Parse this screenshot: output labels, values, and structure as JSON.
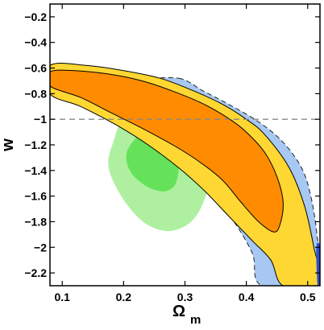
{
  "chart_data": {
    "type": "contour",
    "title": "",
    "xlabel": "Ω",
    "xlabel_sub": "m",
    "ylabel": "w",
    "xlim": [
      0.08,
      0.52
    ],
    "ylim": [
      -2.3,
      -0.1
    ],
    "xticks": [
      0.1,
      0.2,
      0.3,
      0.4,
      0.5
    ],
    "xtick_labels": [
      "0.1",
      "0.2",
      "0.3",
      "0.4",
      "0.5"
    ],
    "yticks": [
      -0.2,
      -0.4,
      -0.6,
      -0.8,
      -1.0,
      -1.2,
      -1.4,
      -1.6,
      -1.8,
      -2.0,
      -2.2
    ],
    "ytick_labels": [
      "−0.2",
      "−0.4",
      "−0.6",
      "−0.8",
      "−1",
      "−1.2",
      "−1.4",
      "−1.6",
      "−1.8",
      "−2",
      "−2.2"
    ],
    "grid": false,
    "legend": "none",
    "reference_line": {
      "y": -1.0,
      "style": "dashed",
      "color": "#888888"
    },
    "regions": [
      {
        "layer": "green-outer",
        "fill": "#aef0a0",
        "stroke": "none",
        "dashed": false,
        "points": [
          [
            0.255,
            -0.7
          ],
          [
            0.28,
            -0.68
          ],
          [
            0.3,
            -0.73
          ],
          [
            0.32,
            -0.85
          ],
          [
            0.33,
            -1.0
          ],
          [
            0.335,
            -1.2
          ],
          [
            0.34,
            -1.45
          ],
          [
            0.33,
            -1.65
          ],
          [
            0.31,
            -1.8
          ],
          [
            0.28,
            -1.87
          ],
          [
            0.25,
            -1.85
          ],
          [
            0.22,
            -1.75
          ],
          [
            0.19,
            -1.55
          ],
          [
            0.175,
            -1.35
          ],
          [
            0.185,
            -1.15
          ],
          [
            0.2,
            -0.95
          ],
          [
            0.22,
            -0.78
          ]
        ]
      },
      {
        "layer": "green-inner",
        "fill": "#66e25a",
        "stroke": "none",
        "dashed": false,
        "points": [
          [
            0.225,
            -1.12
          ],
          [
            0.245,
            -1.06
          ],
          [
            0.265,
            -1.1
          ],
          [
            0.285,
            -1.2
          ],
          [
            0.29,
            -1.35
          ],
          [
            0.285,
            -1.5
          ],
          [
            0.27,
            -1.56
          ],
          [
            0.25,
            -1.55
          ],
          [
            0.23,
            -1.5
          ],
          [
            0.21,
            -1.4
          ],
          [
            0.205,
            -1.26
          ]
        ]
      },
      {
        "layer": "blue-outer",
        "fill": "#a6c8f2",
        "stroke": "#222222",
        "dashed": true,
        "points": [
          [
            0.29,
            -0.68
          ],
          [
            0.33,
            -0.78
          ],
          [
            0.37,
            -0.88
          ],
          [
            0.42,
            -1.02
          ],
          [
            0.46,
            -1.18
          ],
          [
            0.49,
            -1.38
          ],
          [
            0.505,
            -1.6
          ],
          [
            0.515,
            -1.9
          ],
          [
            0.52,
            -2.3
          ],
          [
            0.425,
            -2.3
          ],
          [
            0.41,
            -2.05
          ],
          [
            0.38,
            -1.8
          ],
          [
            0.34,
            -1.55
          ],
          [
            0.3,
            -1.3
          ],
          [
            0.26,
            -1.12
          ],
          [
            0.22,
            -0.95
          ],
          [
            0.2,
            -0.8
          ],
          [
            0.23,
            -0.7
          ]
        ]
      },
      {
        "layer": "blue-inner",
        "fill": "#a6c8f2",
        "stroke": "#222222",
        "dashed": true,
        "points": [
          [
            0.25,
            -0.84
          ],
          [
            0.32,
            -0.93
          ],
          [
            0.39,
            -1.1
          ],
          [
            0.44,
            -1.3
          ],
          [
            0.47,
            -1.52
          ],
          [
            0.485,
            -1.8
          ],
          [
            0.47,
            -1.97
          ],
          [
            0.43,
            -1.9
          ],
          [
            0.39,
            -1.7
          ],
          [
            0.35,
            -1.47
          ],
          [
            0.31,
            -1.27
          ],
          [
            0.25,
            -1.1
          ],
          [
            0.22,
            -0.98
          ]
        ]
      },
      {
        "layer": "yellow-outer",
        "fill": "#ffd733",
        "stroke": "#000000",
        "dashed": false,
        "points": [
          [
            0.08,
            -0.58
          ],
          [
            0.14,
            -0.58
          ],
          [
            0.2,
            -0.62
          ],
          [
            0.26,
            -0.68
          ],
          [
            0.31,
            -0.77
          ],
          [
            0.36,
            -0.88
          ],
          [
            0.4,
            -1.0
          ],
          [
            0.43,
            -1.12
          ],
          [
            0.47,
            -1.38
          ],
          [
            0.495,
            -1.68
          ],
          [
            0.51,
            -2.0
          ],
          [
            0.52,
            -2.3
          ],
          [
            0.46,
            -2.3
          ],
          [
            0.44,
            -2.1
          ],
          [
            0.41,
            -1.95
          ],
          [
            0.37,
            -1.75
          ],
          [
            0.33,
            -1.55
          ],
          [
            0.29,
            -1.38
          ],
          [
            0.24,
            -1.2
          ],
          [
            0.19,
            -1.05
          ],
          [
            0.13,
            -0.9
          ],
          [
            0.08,
            -0.8
          ]
        ]
      },
      {
        "layer": "orange-inner",
        "fill": "#ff8c00",
        "stroke": "#000000",
        "dashed": false,
        "points": [
          [
            0.08,
            -0.63
          ],
          [
            0.12,
            -0.62
          ],
          [
            0.18,
            -0.65
          ],
          [
            0.23,
            -0.7
          ],
          [
            0.28,
            -0.78
          ],
          [
            0.33,
            -0.88
          ],
          [
            0.37,
            -0.99
          ],
          [
            0.4,
            -1.1
          ],
          [
            0.43,
            -1.26
          ],
          [
            0.45,
            -1.45
          ],
          [
            0.46,
            -1.65
          ],
          [
            0.455,
            -1.82
          ],
          [
            0.445,
            -1.88
          ],
          [
            0.42,
            -1.8
          ],
          [
            0.39,
            -1.64
          ],
          [
            0.36,
            -1.47
          ],
          [
            0.32,
            -1.32
          ],
          [
            0.28,
            -1.2
          ],
          [
            0.23,
            -1.07
          ],
          [
            0.18,
            -0.95
          ],
          [
            0.13,
            -0.83
          ],
          [
            0.08,
            -0.74
          ]
        ]
      },
      {
        "layer": "blue-corner",
        "fill": "#2f4fd0",
        "stroke": "none",
        "dashed": false,
        "points": [
          [
            0.514,
            -2.0
          ],
          [
            0.52,
            -2.0
          ],
          [
            0.52,
            -2.3
          ],
          [
            0.516,
            -2.3
          ]
        ]
      }
    ],
    "colors": {
      "green_outer": "#aef0a0",
      "green_inner": "#66e25a",
      "blue": "#a6c8f2",
      "blue_dark": "#2f4fd0",
      "yellow": "#ffd733",
      "orange": "#ff8c00"
    }
  }
}
